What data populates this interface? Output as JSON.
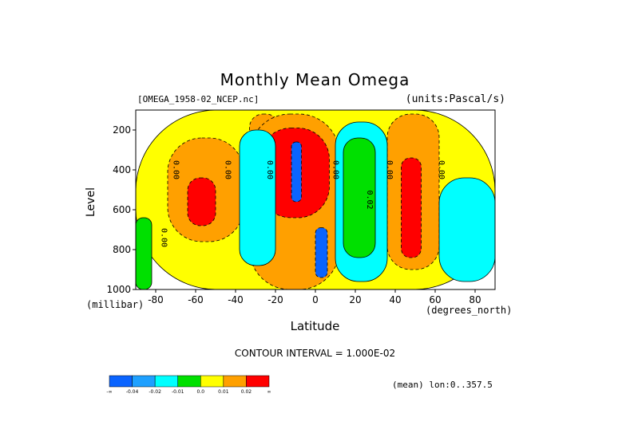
{
  "chart_data": {
    "type": "heatmap",
    "title": "Monthly Mean Omega",
    "file_label": "[OMEGA_1958-02_NCEP.nc]",
    "units_label": "(units:Pascal/s)",
    "xlabel": "Latitude",
    "x_unit": "(degrees_north)",
    "ylabel": "Level",
    "y_unit": "(millibar)",
    "xlim": [
      -90,
      90
    ],
    "ylim": [
      1000,
      100
    ],
    "x_ticks": [
      -80,
      -60,
      -40,
      -20,
      0,
      20,
      40,
      60,
      80
    ],
    "y_ticks": [
      200,
      400,
      600,
      800,
      1000
    ],
    "contour_interval_label": "CONTOUR INTERVAL = 1.000E-02",
    "mean_label": "(mean) lon:0..357.5",
    "contour_labels": [
      {
        "text": "0.00",
        "x": -71,
        "y": 400
      },
      {
        "text": "0.00",
        "x": -45,
        "y": 400
      },
      {
        "text": "0.00",
        "x": -24,
        "y": 400
      },
      {
        "text": "0.00",
        "x": 9,
        "y": 400
      },
      {
        "text": "0.00",
        "x": 36,
        "y": 400
      },
      {
        "text": "0.00",
        "x": 62,
        "y": 400
      },
      {
        "text": "0.02",
        "x": 26,
        "y": 550
      },
      {
        "text": "0.00",
        "x": -77,
        "y": 740
      }
    ],
    "colorbar": {
      "colors": [
        "#0a64ff",
        "#1ea0ff",
        "#00ffff",
        "#00e000",
        "#ffff00",
        "#ffa000",
        "#ff0000"
      ],
      "labels": [
        "-∞",
        "-0.04",
        "-0.02",
        "-0.01",
        "0.0",
        "0.01",
        "0.02",
        "∞"
      ]
    },
    "regions": [
      {
        "level": 0,
        "x": [
          -90,
          90
        ],
        "y": [
          100,
          1000
        ]
      },
      {
        "level": 1,
        "x": [
          -74,
          -36
        ],
        "y": [
          240,
          760
        ]
      },
      {
        "level": 2,
        "x": [
          -64,
          -50
        ],
        "y": [
          440,
          680
        ]
      },
      {
        "level": 1,
        "x": [
          -33,
          -18
        ],
        "y": [
          120,
          620
        ]
      },
      {
        "level": 1,
        "x": [
          -33,
          12
        ],
        "y": [
          120,
          1000
        ]
      },
      {
        "level": 2,
        "x": [
          -28,
          7
        ],
        "y": [
          190,
          640
        ]
      },
      {
        "level": 3,
        "x": [
          -12,
          -7
        ],
        "y": [
          260,
          560
        ]
      },
      {
        "level": 3,
        "x": [
          0,
          6
        ],
        "y": [
          690,
          940
        ]
      },
      {
        "level": 1,
        "x": [
          36,
          62
        ],
        "y": [
          120,
          900
        ]
      },
      {
        "level": 2,
        "x": [
          43,
          53
        ],
        "y": [
          340,
          840
        ]
      },
      {
        "level": 5,
        "x": [
          10,
          36
        ],
        "y": [
          160,
          960
        ]
      },
      {
        "level": 6,
        "x": [
          14,
          30
        ],
        "y": [
          240,
          840
        ]
      },
      {
        "level": 5,
        "x": [
          -38,
          -20
        ],
        "y": [
          200,
          880
        ]
      },
      {
        "level": 5,
        "x": [
          62,
          90
        ],
        "y": [
          440,
          960
        ]
      },
      {
        "level": 6,
        "x": [
          -90,
          -82
        ],
        "y": [
          640,
          1000
        ]
      }
    ]
  }
}
